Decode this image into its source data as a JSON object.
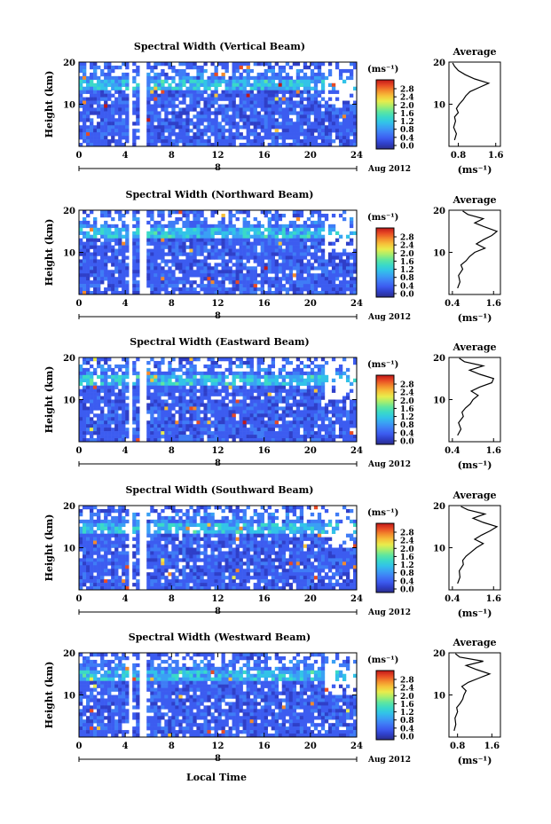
{
  "x_axis_label": "Local Time",
  "colors": {
    "ink": "#000000",
    "colormap": [
      "#2b2d8a",
      "#2f3fc8",
      "#3c5cf0",
      "#3f7cf6",
      "#3aa0f4",
      "#32c3e8",
      "#3ad9c8",
      "#5ee6a0",
      "#a6ee6e",
      "#e9ec4c",
      "#f6c23a",
      "#f38a2c",
      "#e84a24",
      "#c01818"
    ]
  },
  "chart_data": [
    {
      "type": "heatmap",
      "title": "Spectral Width (Vertical Beam)",
      "ylabel": "Height (km)",
      "x": {
        "ticks": [
          0,
          4,
          8,
          12,
          16,
          20,
          24
        ],
        "range": [
          0,
          24
        ]
      },
      "y": {
        "ticks": [
          10,
          20
        ],
        "range": [
          0,
          20
        ]
      },
      "date_day": "8",
      "date_suffix": "Aug 2012",
      "colorbar": {
        "unit": "(ms⁻¹)",
        "ticks": [
          "0.0",
          "0.4",
          "0.8",
          "1.2",
          "1.6",
          "2.0",
          "2.4",
          "2.8"
        ]
      },
      "profile": {
        "title": "Average",
        "xlabel": "(ms⁻¹)",
        "x_ticks": [
          "0.8",
          "1.6"
        ],
        "xlim": [
          0.6,
          1.7
        ],
        "y_ticks": [
          10,
          20
        ],
        "ylim": [
          0,
          20
        ],
        "height": [
          1.5,
          3,
          4.5,
          6,
          7,
          8,
          9,
          10,
          11,
          12,
          13,
          14,
          15,
          16,
          17,
          18,
          19,
          19.8
        ],
        "value": [
          0.72,
          0.76,
          0.7,
          0.74,
          0.72,
          0.8,
          0.76,
          0.82,
          0.9,
          0.96,
          1.05,
          1.25,
          1.45,
          1.15,
          0.95,
          0.8,
          0.72,
          0.68
        ]
      }
    },
    {
      "type": "heatmap",
      "title": "Spectral Width (Northward Beam)",
      "ylabel": "Height (km)",
      "x": {
        "ticks": [
          0,
          4,
          8,
          12,
          16,
          20,
          24
        ],
        "range": [
          0,
          24
        ]
      },
      "y": {
        "ticks": [
          10,
          20
        ],
        "range": [
          0,
          20
        ]
      },
      "date_day": "8",
      "date_suffix": "Aug 2012",
      "colorbar": {
        "unit": "(ms⁻¹)",
        "ticks": [
          "0.0",
          "0.4",
          "0.8",
          "1.2",
          "1.6",
          "2.0",
          "2.4",
          "2.8"
        ]
      },
      "profile": {
        "title": "Average",
        "xlabel": "(ms⁻¹)",
        "x_ticks": [
          "0.4",
          "1.6"
        ],
        "xlim": [
          0.3,
          1.8
        ],
        "y_ticks": [
          10,
          20
        ],
        "ylim": [
          0,
          20
        ],
        "height": [
          1.5,
          3,
          4.5,
          6,
          7,
          8,
          9,
          10,
          11,
          12,
          13,
          14,
          15,
          16,
          17,
          18,
          19,
          19.8
        ],
        "value": [
          0.55,
          0.62,
          0.58,
          0.7,
          0.65,
          0.8,
          0.9,
          1.05,
          1.35,
          1.1,
          1.3,
          1.55,
          1.7,
          1.35,
          1.05,
          1.3,
          0.85,
          0.7
        ]
      }
    },
    {
      "type": "heatmap",
      "title": "Spectral Width (Eastward Beam)",
      "ylabel": "Height (km)",
      "x": {
        "ticks": [
          0,
          4,
          8,
          12,
          16,
          20,
          24
        ],
        "range": [
          0,
          24
        ]
      },
      "y": {
        "ticks": [
          10,
          20
        ],
        "range": [
          0,
          20
        ]
      },
      "date_day": "8",
      "date_suffix": "Aug 2012",
      "colorbar": {
        "unit": "(ms⁻¹)",
        "ticks": [
          "0.0",
          "0.4",
          "0.8",
          "1.2",
          "1.6",
          "2.0",
          "2.4",
          "2.8"
        ]
      },
      "profile": {
        "title": "Average",
        "xlabel": "(ms⁻¹)",
        "x_ticks": [
          "0.4",
          "1.6"
        ],
        "xlim": [
          0.3,
          1.8
        ],
        "y_ticks": [
          10,
          20
        ],
        "ylim": [
          0,
          20
        ],
        "height": [
          1.5,
          3,
          4.5,
          6,
          7,
          8,
          9,
          10,
          11,
          12,
          13,
          14,
          15,
          16,
          17,
          18,
          19,
          19.8
        ],
        "value": [
          0.55,
          0.65,
          0.58,
          0.72,
          0.68,
          0.78,
          0.92,
          1.0,
          1.15,
          0.95,
          1.2,
          1.55,
          1.6,
          1.2,
          0.9,
          1.3,
          0.75,
          0.6
        ]
      }
    },
    {
      "type": "heatmap",
      "title": "Spectral Width (Southward Beam)",
      "ylabel": "Height (km)",
      "x": {
        "ticks": [
          0,
          4,
          8,
          12,
          16,
          20,
          24
        ],
        "range": [
          0,
          24
        ]
      },
      "y": {
        "ticks": [
          10,
          20
        ],
        "range": [
          0,
          20
        ]
      },
      "date_day": "8",
      "date_suffix": "Aug 2012",
      "colorbar": {
        "unit": "(ms⁻¹)",
        "ticks": [
          "0.0",
          "0.4",
          "0.8",
          "1.2",
          "1.6",
          "2.0",
          "2.4",
          "2.8"
        ]
      },
      "profile": {
        "title": "Average",
        "xlabel": "(ms⁻¹)",
        "x_ticks": [
          "0.4",
          "1.6"
        ],
        "xlim": [
          0.3,
          1.8
        ],
        "y_ticks": [
          10,
          20
        ],
        "ylim": [
          0,
          20
        ],
        "height": [
          1.5,
          3,
          4.5,
          6,
          7,
          8,
          9,
          10,
          11,
          12,
          13,
          14,
          15,
          16,
          17,
          18,
          19,
          19.8
        ],
        "value": [
          0.55,
          0.62,
          0.6,
          0.72,
          0.7,
          0.8,
          0.95,
          1.1,
          1.3,
          1.05,
          1.25,
          1.5,
          1.7,
          1.3,
          1.0,
          1.35,
          0.85,
          0.65
        ]
      }
    },
    {
      "type": "heatmap",
      "title": "Spectral Width (Westward Beam)",
      "ylabel": "Height (km)",
      "x": {
        "ticks": [
          0,
          4,
          8,
          12,
          16,
          20,
          24
        ],
        "range": [
          0,
          24
        ]
      },
      "y": {
        "ticks": [
          10,
          20
        ],
        "range": [
          0,
          20
        ]
      },
      "date_day": "8",
      "date_suffix": "Aug 2012",
      "colorbar": {
        "unit": "(ms⁻¹)",
        "ticks": [
          "0.0",
          "0.4",
          "0.8",
          "1.2",
          "1.6",
          "2.0",
          "2.4",
          "2.8"
        ]
      },
      "profile": {
        "title": "Average",
        "xlabel": "(ms⁻¹)",
        "x_ticks": [
          "0.8",
          "1.6"
        ],
        "xlim": [
          0.6,
          1.8
        ],
        "y_ticks": [
          10,
          20
        ],
        "ylim": [
          0,
          20
        ],
        "height": [
          1.5,
          3,
          4.5,
          6,
          7,
          8,
          9,
          10,
          11,
          12,
          13,
          14,
          15,
          16,
          17,
          18,
          19,
          19.8
        ],
        "value": [
          0.72,
          0.76,
          0.74,
          0.8,
          0.78,
          0.86,
          0.92,
          0.95,
          1.0,
          0.9,
          1.05,
          1.3,
          1.55,
          1.25,
          1.0,
          1.4,
          0.85,
          0.75
        ]
      }
    }
  ]
}
